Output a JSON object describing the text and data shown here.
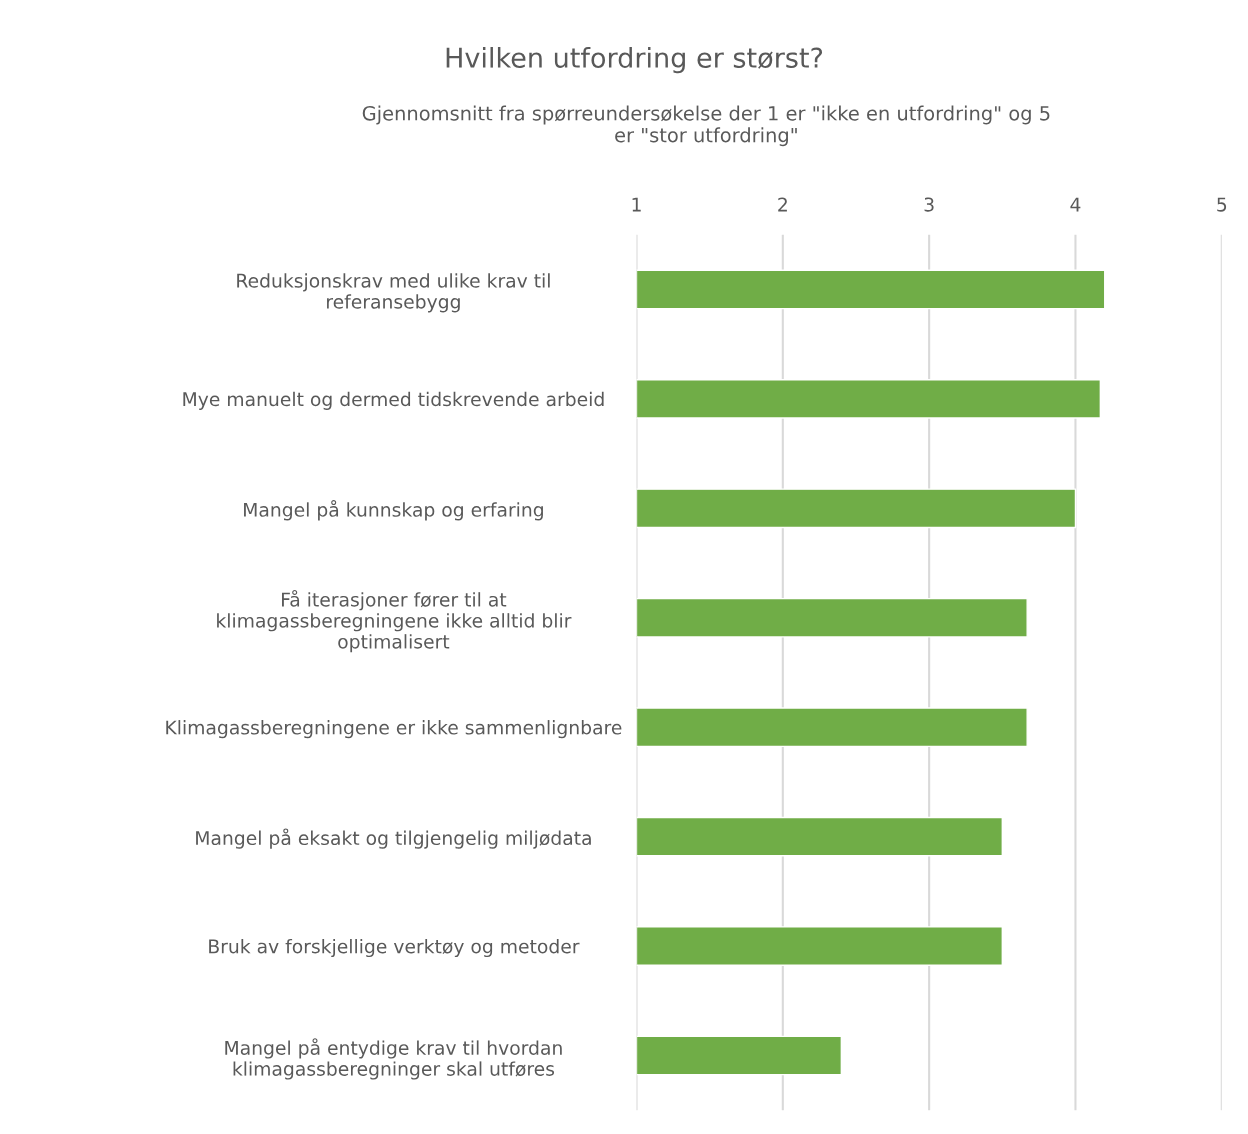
{
  "chart_data": {
    "type": "bar",
    "orientation": "horizontal",
    "title": "Hvilken utfordring er størst?",
    "subtitle": "Gjennomsnitt fra spørreundersøkelse der 1 er \"ikke en utfordring\" og 5 er \"stor utfordring\"",
    "categories": [
      "Reduksjonskrav med ulike krav til referansebygg",
      "Mye manuelt og dermed tidskrevende arbeid",
      "Mangel på kunnskap og erfaring",
      "Få iterasjoner fører til at klimagassberegningene ikke alltid blir optimalisert",
      "Klimagassberegningene er ikke sammenlignbare",
      "Mangel på eksakt og tilgjengelig miljødata",
      "Bruk av forskjellige verktøy og metoder",
      "Mangel på entydige krav til hvordan klimagassberegninger skal utføres"
    ],
    "values": [
      4.2,
      4.17,
      4.0,
      3.67,
      3.67,
      3.5,
      3.5,
      2.4
    ],
    "color": "#70ad47",
    "xlim": [
      1,
      5
    ],
    "xticks": [
      1,
      2,
      3,
      4,
      5
    ],
    "grid": "x",
    "legend": false
  }
}
